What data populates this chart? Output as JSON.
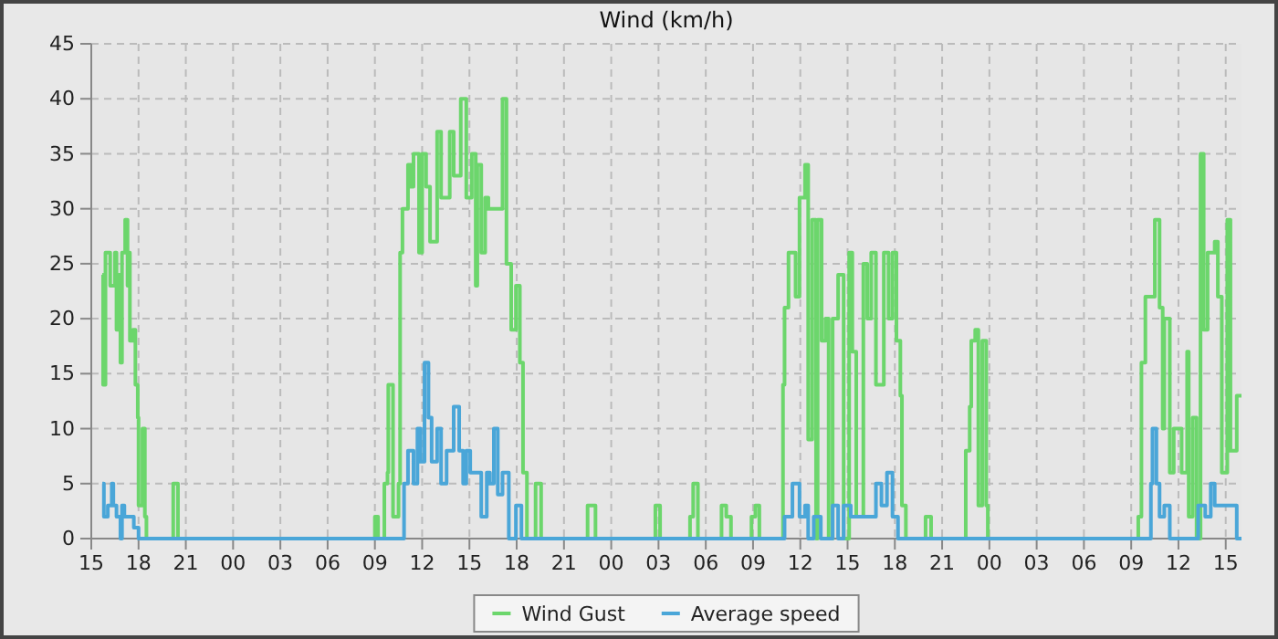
{
  "chart_data": {
    "type": "step",
    "title": "Wind (km/h)",
    "xlim": [
      15,
      88
    ],
    "ylim": [
      0,
      45
    ],
    "xticks": [
      {
        "value": 15,
        "label": "15"
      },
      {
        "value": 18,
        "label": "18"
      },
      {
        "value": 21,
        "label": "21"
      },
      {
        "value": 24,
        "label": "00"
      },
      {
        "value": 27,
        "label": "03"
      },
      {
        "value": 30,
        "label": "06"
      },
      {
        "value": 33,
        "label": "09"
      },
      {
        "value": 36,
        "label": "12"
      },
      {
        "value": 39,
        "label": "15"
      },
      {
        "value": 42,
        "label": "18"
      },
      {
        "value": 45,
        "label": "21"
      },
      {
        "value": 48,
        "label": "00"
      },
      {
        "value": 51,
        "label": "03"
      },
      {
        "value": 54,
        "label": "06"
      },
      {
        "value": 57,
        "label": "09"
      },
      {
        "value": 60,
        "label": "12"
      },
      {
        "value": 63,
        "label": "15"
      },
      {
        "value": 66,
        "label": "18"
      },
      {
        "value": 69,
        "label": "21"
      },
      {
        "value": 72,
        "label": "00"
      },
      {
        "value": 75,
        "label": "03"
      },
      {
        "value": 78,
        "label": "06"
      },
      {
        "value": 81,
        "label": "09"
      },
      {
        "value": 84,
        "label": "12"
      },
      {
        "value": 87,
        "label": "15"
      }
    ],
    "yticks": [
      0,
      5,
      10,
      15,
      20,
      25,
      30,
      35,
      40,
      45
    ],
    "grid": true,
    "legend": "bottom",
    "series": [
      {
        "name": "Wind Gust",
        "color": "#6cd66c",
        "x": [
          15.7,
          15.75,
          15.9,
          16.2,
          16.5,
          16.6,
          16.75,
          16.85,
          16.95,
          17.15,
          17.3,
          17.35,
          17.45,
          17.65,
          17.8,
          17.95,
          18.0,
          18.25,
          18.4,
          18.5,
          20.2,
          20.5,
          33.0,
          33.2,
          33.6,
          33.8,
          33.85,
          34.15,
          34.5,
          34.6,
          34.75,
          35.1,
          35.3,
          35.45,
          35.8,
          36.0,
          36.25,
          36.5,
          36.95,
          37.2,
          37.75,
          38.0,
          38.45,
          38.8,
          39.15,
          39.4,
          39.5,
          39.75,
          40.0,
          40.2,
          41.1,
          41.35,
          41.65,
          41.95,
          42.2,
          42.4,
          42.65,
          43.2,
          43.55,
          46.5,
          47.0,
          50.8,
          51.1,
          53.0,
          53.2,
          53.5,
          55.0,
          55.3,
          55.6,
          56.9,
          57.15,
          57.4,
          58.9,
          59.0,
          59.25,
          59.7,
          59.95,
          60.3,
          60.5,
          60.75,
          61.0,
          61.1,
          61.35,
          61.6,
          61.8,
          62.05,
          62.4,
          62.75,
          63.1,
          63.3,
          63.55,
          64.0,
          64.25,
          64.5,
          64.8,
          65.3,
          65.6,
          65.85,
          66.1,
          66.35,
          66.45,
          66.7,
          67.95,
          68.3,
          70.5,
          70.75,
          70.85,
          71.1,
          71.3,
          71.55,
          71.8,
          71.9,
          81.45,
          81.65,
          81.9,
          82.5,
          82.8,
          83.0,
          83.1,
          83.45,
          83.7,
          84.2,
          84.55,
          84.65,
          84.9,
          85.15,
          85.4,
          85.6,
          85.85,
          86.3,
          86.5,
          86.75,
          87.1,
          87.3,
          87.7,
          88.0
        ],
        "values": [
          24,
          14,
          26,
          23,
          26,
          19,
          24,
          16,
          26,
          29,
          23,
          26,
          18,
          19,
          14,
          11,
          3,
          10,
          2,
          0,
          5,
          0,
          2,
          0,
          5,
          6,
          14,
          2,
          5,
          26,
          30,
          34,
          32,
          35,
          26,
          35,
          32,
          27,
          37,
          31,
          37,
          33,
          40,
          31,
          35,
          23,
          34,
          26,
          31,
          30,
          40,
          25,
          19,
          23,
          16,
          6,
          0,
          5,
          0,
          3,
          0,
          3,
          0,
          2,
          5,
          0,
          3,
          2,
          0,
          2,
          3,
          0,
          14,
          21,
          26,
          22,
          31,
          34,
          9,
          29,
          0,
          29,
          18,
          20,
          0,
          20,
          24,
          0,
          26,
          17,
          2,
          25,
          20,
          26,
          14,
          26,
          20,
          26,
          18,
          13,
          3,
          0,
          2,
          0,
          8,
          12,
          18,
          19,
          3,
          18,
          3,
          0,
          2,
          16,
          22,
          29,
          21,
          10,
          20,
          6,
          10,
          6,
          17,
          2,
          11,
          0,
          35,
          19,
          26,
          27,
          22,
          6,
          29,
          8,
          13,
          13
        ]
      },
      {
        "name": "Average speed",
        "color": "#4aa6d8",
        "x": [
          15.7,
          15.8,
          16.05,
          16.3,
          16.4,
          16.6,
          16.85,
          16.95,
          17.1,
          17.7,
          17.8,
          18.0,
          34.85,
          35.1,
          35.45,
          35.7,
          35.9,
          36.15,
          36.4,
          36.6,
          36.95,
          37.2,
          37.55,
          38.0,
          38.35,
          38.6,
          38.8,
          39.05,
          39.75,
          40.1,
          40.3,
          40.55,
          40.8,
          41.1,
          41.5,
          41.95,
          42.3,
          59.0,
          59.5,
          59.95,
          60.3,
          60.5,
          60.85,
          61.3,
          62.05,
          62.4,
          62.75,
          63.2,
          64.8,
          65.15,
          65.5,
          65.85,
          66.2,
          82.25,
          82.35,
          82.6,
          82.8,
          83.1,
          83.45,
          85.25,
          85.7,
          86.05,
          86.3,
          87.7,
          88.0
        ],
        "values": [
          5,
          2,
          3,
          5,
          3,
          2,
          0,
          3,
          2,
          1,
          1,
          0,
          5,
          8,
          5,
          10,
          7,
          16,
          11,
          7,
          10,
          5,
          8,
          12,
          8,
          5,
          8,
          6,
          2,
          6,
          5,
          10,
          4,
          6,
          0,
          3,
          0,
          2,
          5,
          2,
          3,
          0,
          2,
          0,
          3,
          0,
          3,
          2,
          5,
          3,
          6,
          2,
          0,
          5,
          10,
          5,
          2,
          3,
          0,
          3,
          2,
          5,
          3,
          0,
          0
        ]
      }
    ]
  }
}
